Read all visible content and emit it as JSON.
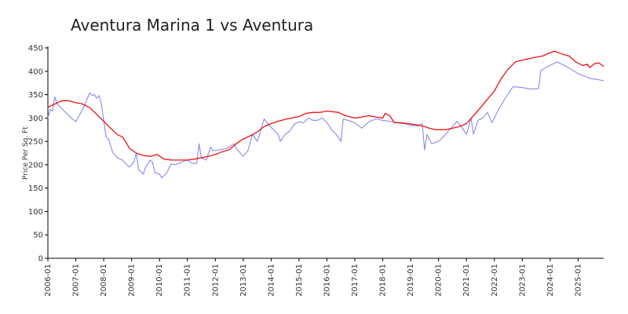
{
  "chart_data": {
    "type": "line",
    "title": "Aventura Marina 1 vs Aventura",
    "xlabel": "",
    "ylabel": "Price Per Sq. Ft",
    "ylim": [
      0,
      450
    ],
    "yticks": [
      0,
      50,
      100,
      150,
      200,
      250,
      300,
      350,
      400,
      450
    ],
    "xlim": [
      "2006-01",
      "2025-12"
    ],
    "xticks": [
      "2006-01",
      "2007-01",
      "2008-01",
      "2009-01",
      "2010-01",
      "2011-01",
      "2012-01",
      "2013-01",
      "2014-01",
      "2015-01",
      "2016-01",
      "2017-01",
      "2018-01",
      "2019-01",
      "2020-01",
      "2021-01",
      "2022-01",
      "2023-01",
      "2024-01",
      "2025-01"
    ],
    "grid": false,
    "series": [
      {
        "color": "#8888ee",
        "points": [
          [
            "2006-01",
            300
          ],
          [
            "2006-02",
            318
          ],
          [
            "2006-03",
            315
          ],
          [
            "2006-04",
            345
          ],
          [
            "2006-05",
            330
          ],
          [
            "2006-07",
            320
          ],
          [
            "2006-09",
            310
          ],
          [
            "2006-11",
            300
          ],
          [
            "2007-01",
            292
          ],
          [
            "2007-03",
            310
          ],
          [
            "2007-05",
            330
          ],
          [
            "2007-07",
            354
          ],
          [
            "2007-08",
            348
          ],
          [
            "2007-09",
            350
          ],
          [
            "2007-10",
            342
          ],
          [
            "2007-11",
            348
          ],
          [
            "2007-12",
            330
          ],
          [
            "2008-02",
            260
          ],
          [
            "2008-03",
            255
          ],
          [
            "2008-05",
            225
          ],
          [
            "2008-07",
            215
          ],
          [
            "2008-09",
            210
          ],
          [
            "2008-11",
            200
          ],
          [
            "2008-12",
            195
          ],
          [
            "2009-02",
            205
          ],
          [
            "2009-03",
            225
          ],
          [
            "2009-04",
            190
          ],
          [
            "2009-06",
            180
          ],
          [
            "2009-07",
            195
          ],
          [
            "2009-09",
            210
          ],
          [
            "2009-10",
            205
          ],
          [
            "2009-11",
            183
          ],
          [
            "2010-01",
            180
          ],
          [
            "2010-02",
            172
          ],
          [
            "2010-04",
            182
          ],
          [
            "2010-06",
            202
          ],
          [
            "2010-08",
            200
          ],
          [
            "2010-10",
            205
          ],
          [
            "2011-01",
            210
          ],
          [
            "2011-03",
            203
          ],
          [
            "2011-05",
            203
          ],
          [
            "2011-06",
            245
          ],
          [
            "2011-07",
            215
          ],
          [
            "2011-09",
            210
          ],
          [
            "2011-11",
            238
          ],
          [
            "2011-12",
            230
          ],
          [
            "2012-03",
            232
          ],
          [
            "2012-06",
            235
          ],
          [
            "2012-09",
            245
          ],
          [
            "2012-10",
            235
          ],
          [
            "2013-01",
            218
          ],
          [
            "2013-03",
            230
          ],
          [
            "2013-05",
            265
          ],
          [
            "2013-07",
            250
          ],
          [
            "2013-08",
            265
          ],
          [
            "2013-10",
            298
          ],
          [
            "2013-12",
            285
          ],
          [
            "2014-02",
            275
          ],
          [
            "2014-04",
            265
          ],
          [
            "2014-05",
            250
          ],
          [
            "2014-07",
            265
          ],
          [
            "2014-09",
            272
          ],
          [
            "2014-11",
            287
          ],
          [
            "2015-01",
            292
          ],
          [
            "2015-03",
            290
          ],
          [
            "2015-05",
            300
          ],
          [
            "2015-07",
            295
          ],
          [
            "2015-09",
            295
          ],
          [
            "2015-11",
            300
          ],
          [
            "2016-01",
            290
          ],
          [
            "2016-03",
            275
          ],
          [
            "2016-05",
            265
          ],
          [
            "2016-07",
            250
          ],
          [
            "2016-08",
            298
          ],
          [
            "2016-10",
            295
          ],
          [
            "2017-01",
            290
          ],
          [
            "2017-04",
            278
          ],
          [
            "2017-07",
            292
          ],
          [
            "2017-10",
            298
          ],
          [
            "2018-01",
            295
          ],
          [
            "2018-04",
            293
          ],
          [
            "2018-07",
            290
          ],
          [
            "2018-10",
            288
          ],
          [
            "2019-01",
            285
          ],
          [
            "2019-04",
            283
          ],
          [
            "2019-06",
            288
          ],
          [
            "2019-07",
            232
          ],
          [
            "2019-08",
            265
          ],
          [
            "2019-10",
            245
          ],
          [
            "2020-01",
            250
          ],
          [
            "2020-04",
            265
          ],
          [
            "2020-07",
            282
          ],
          [
            "2020-09",
            293
          ],
          [
            "2020-11",
            280
          ],
          [
            "2021-01",
            265
          ],
          [
            "2021-03",
            300
          ],
          [
            "2021-04",
            265
          ],
          [
            "2021-06",
            295
          ],
          [
            "2021-08",
            300
          ],
          [
            "2021-10",
            312
          ],
          [
            "2021-12",
            290
          ],
          [
            "2022-03",
            320
          ],
          [
            "2022-06",
            345
          ],
          [
            "2022-09",
            367
          ],
          [
            "2023-01",
            365
          ],
          [
            "2023-05",
            362
          ],
          [
            "2023-08",
            363
          ],
          [
            "2023-09",
            402
          ],
          [
            "2023-12",
            410
          ],
          [
            "2024-04",
            420
          ],
          [
            "2024-08",
            410
          ],
          [
            "2025-01",
            395
          ],
          [
            "2025-06",
            385
          ],
          [
            "2025-12",
            380
          ]
        ]
      },
      {
        "color": "#ee1111",
        "points": [
          [
            "2006-01",
            323
          ],
          [
            "2006-04",
            330
          ],
          [
            "2006-07",
            337
          ],
          [
            "2006-10",
            337
          ],
          [
            "2007-01",
            333
          ],
          [
            "2007-04",
            330
          ],
          [
            "2007-07",
            322
          ],
          [
            "2007-10",
            308
          ],
          [
            "2008-01",
            293
          ],
          [
            "2008-04",
            278
          ],
          [
            "2008-07",
            264
          ],
          [
            "2008-09",
            260
          ],
          [
            "2008-11",
            245
          ],
          [
            "2008-12",
            235
          ],
          [
            "2009-03",
            225
          ],
          [
            "2009-06",
            220
          ],
          [
            "2009-09",
            218
          ],
          [
            "2009-12",
            222
          ],
          [
            "2010-03",
            212
          ],
          [
            "2010-06",
            210
          ],
          [
            "2010-09",
            210
          ],
          [
            "2011-01",
            210
          ],
          [
            "2011-04",
            212
          ],
          [
            "2011-07",
            215
          ],
          [
            "2011-10",
            218
          ],
          [
            "2012-01",
            222
          ],
          [
            "2012-04",
            228
          ],
          [
            "2012-07",
            232
          ],
          [
            "2012-10",
            245
          ],
          [
            "2013-01",
            255
          ],
          [
            "2013-04",
            262
          ],
          [
            "2013-07",
            270
          ],
          [
            "2013-10",
            282
          ],
          [
            "2014-01",
            288
          ],
          [
            "2014-04",
            293
          ],
          [
            "2014-07",
            297
          ],
          [
            "2014-10",
            300
          ],
          [
            "2015-01",
            303
          ],
          [
            "2015-04",
            310
          ],
          [
            "2015-07",
            312
          ],
          [
            "2015-10",
            312
          ],
          [
            "2016-01",
            315
          ],
          [
            "2016-06",
            312
          ],
          [
            "2016-09",
            305
          ],
          [
            "2017-01",
            300
          ],
          [
            "2017-04",
            302
          ],
          [
            "2017-07",
            305
          ],
          [
            "2017-10",
            302
          ],
          [
            "2018-01",
            300
          ],
          [
            "2018-02",
            310
          ],
          [
            "2018-04",
            305
          ],
          [
            "2018-06",
            290
          ],
          [
            "2018-09",
            290
          ],
          [
            "2018-12",
            288
          ],
          [
            "2019-04",
            285
          ],
          [
            "2019-07",
            282
          ],
          [
            "2019-09",
            278
          ],
          [
            "2019-12",
            275
          ],
          [
            "2020-04",
            275
          ],
          [
            "2020-07",
            278
          ],
          [
            "2020-10",
            282
          ],
          [
            "2021-01",
            288
          ],
          [
            "2021-04",
            305
          ],
          [
            "2021-07",
            322
          ],
          [
            "2021-10",
            340
          ],
          [
            "2022-01",
            358
          ],
          [
            "2022-04",
            385
          ],
          [
            "2022-07",
            405
          ],
          [
            "2022-10",
            420
          ],
          [
            "2023-01",
            424
          ],
          [
            "2023-04",
            427
          ],
          [
            "2023-07",
            430
          ],
          [
            "2023-10",
            433
          ],
          [
            "2024-01",
            440
          ],
          [
            "2024-03",
            443
          ],
          [
            "2024-06",
            437
          ],
          [
            "2024-09",
            433
          ],
          [
            "2024-12",
            420
          ],
          [
            "2025-03",
            412
          ],
          [
            "2025-05",
            415
          ],
          [
            "2025-06",
            408
          ],
          [
            "2025-08",
            416
          ],
          [
            "2025-10",
            418
          ],
          [
            "2025-12",
            410
          ]
        ]
      }
    ]
  }
}
